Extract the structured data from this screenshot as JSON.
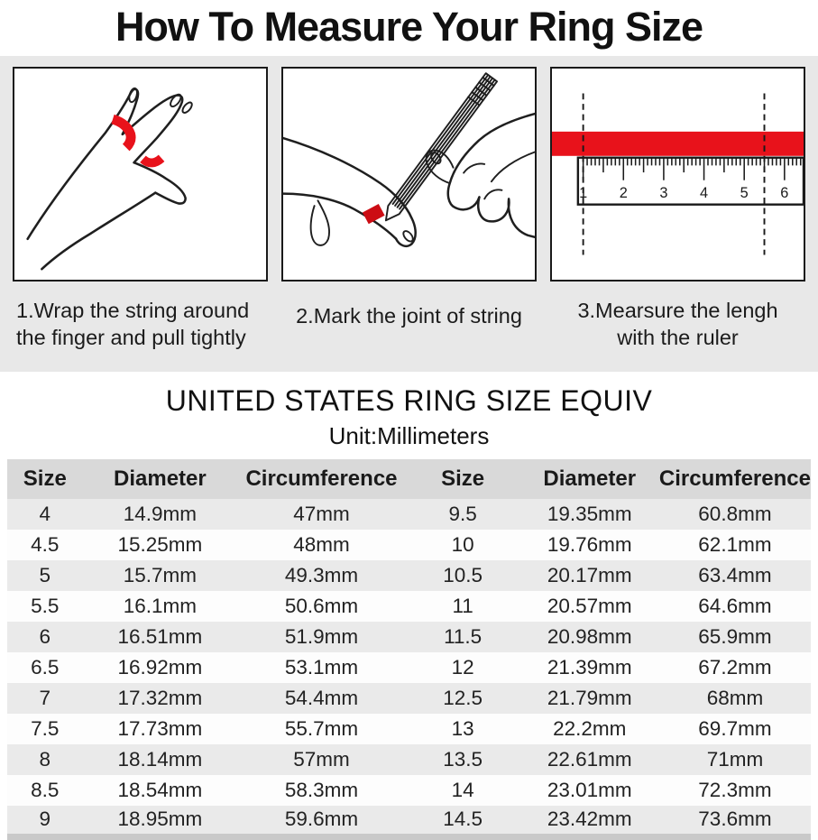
{
  "page": {
    "title": "How To Measure Your Ring Size"
  },
  "steps": [
    {
      "caption": "1.Wrap the string around\nthe finger and pull tightly"
    },
    {
      "caption": "2.Mark the joint of string"
    },
    {
      "caption": "3.Mearsure the lengh\nwith the ruler"
    }
  ],
  "ruler_numbers": [
    "1",
    "2",
    "3",
    "4",
    "5",
    "6"
  ],
  "size_chart": {
    "heading": "UNITED STATES RING SIZE EQUIV",
    "unit": "Unit:Millimeters",
    "columns": [
      "Size",
      "Diameter",
      "Circumference",
      "Size",
      "Diameter",
      "Circumference"
    ],
    "rows": [
      [
        "4",
        "14.9mm",
        "47mm",
        "9.5",
        "19.35mm",
        "60.8mm"
      ],
      [
        "4.5",
        "15.25mm",
        "48mm",
        "10",
        "19.76mm",
        "62.1mm"
      ],
      [
        "5",
        "15.7mm",
        "49.3mm",
        "10.5",
        "20.17mm",
        "63.4mm"
      ],
      [
        "5.5",
        "16.1mm",
        "50.6mm",
        "11",
        "20.57mm",
        "64.6mm"
      ],
      [
        "6",
        "16.51mm",
        "51.9mm",
        "11.5",
        "20.98mm",
        "65.9mm"
      ],
      [
        "6.5",
        "16.92mm",
        "53.1mm",
        "12",
        "21.39mm",
        "67.2mm"
      ],
      [
        "7",
        "17.32mm",
        "54.4mm",
        "12.5",
        "21.79mm",
        "68mm"
      ],
      [
        "7.5",
        "17.73mm",
        "55.7mm",
        "13",
        "22.2mm",
        "69.7mm"
      ],
      [
        "8",
        "18.14mm",
        "57mm",
        "13.5",
        "22.61mm",
        "71mm"
      ],
      [
        "8.5",
        "18.54mm",
        "58.3mm",
        "14",
        "23.01mm",
        "72.3mm"
      ],
      [
        "9",
        "18.95mm",
        "59.6mm",
        "14.5",
        "23.42mm",
        "73.6mm"
      ]
    ]
  },
  "colors": {
    "accent_red": "#e8121b",
    "band_gray": "#e8e8e8",
    "table_header_gray": "#d9d9d9",
    "row_stripe_gray": "#eaeaea"
  }
}
